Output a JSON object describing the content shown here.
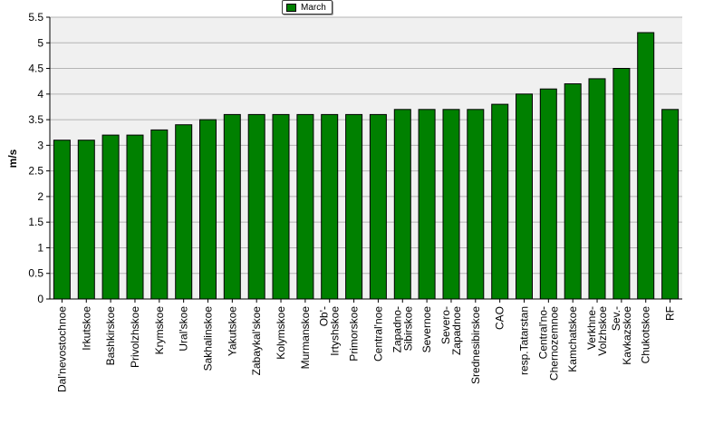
{
  "chart_data": {
    "type": "bar",
    "ylabel": "m/s",
    "xlabel": "",
    "ylim": [
      0,
      5.5
    ],
    "yticks": [
      "0",
      "0.5",
      "1",
      "1.5",
      "2",
      "2.5",
      "3",
      "3.5",
      "4",
      "4.5",
      "5",
      "5.5"
    ],
    "grid": true,
    "legend_position": "top-center",
    "bar_color": "#008000",
    "plot_background": "#f0f0f0",
    "categories": [
      [
        "Dal'nevostochnoe"
      ],
      [
        "Irkutskoe"
      ],
      [
        "Bashkirskoe"
      ],
      [
        "Privolzhskoe"
      ],
      [
        "Krymskoe"
      ],
      [
        "Ural'skoe"
      ],
      [
        "Sakhalinskoe"
      ],
      [
        "Yakutskoe"
      ],
      [
        "Zabaykal'skoe"
      ],
      [
        "Kolymskoe"
      ],
      [
        "Murmanskoe"
      ],
      [
        "Ob'-",
        "Irtyshskoe"
      ],
      [
        "Primorskoe"
      ],
      [
        "Central'noe"
      ],
      [
        "Zapadno-",
        "Sibirskoe"
      ],
      [
        "Severnoe"
      ],
      [
        "Severo-",
        "Zapadnoe"
      ],
      [
        "Srednesibirskoe"
      ],
      [
        "CAO"
      ],
      [
        "resp.Tatarstan"
      ],
      [
        "Central'no-",
        "Chernozemnoe"
      ],
      [
        "Kamchatskoe"
      ],
      [
        "Verkhne-",
        "Volzhskoe"
      ],
      [
        "Sev.-",
        "Kavkazskoe"
      ],
      [
        "Chukotskoe"
      ],
      [
        "RF"
      ]
    ],
    "series": [
      {
        "name": "March",
        "values": [
          3.1,
          3.1,
          3.2,
          3.2,
          3.3,
          3.4,
          3.5,
          3.6,
          3.6,
          3.6,
          3.6,
          3.6,
          3.6,
          3.6,
          3.7,
          3.7,
          3.7,
          3.7,
          3.8,
          4.0,
          4.1,
          4.2,
          4.3,
          4.5,
          5.2,
          3.7
        ]
      }
    ]
  }
}
